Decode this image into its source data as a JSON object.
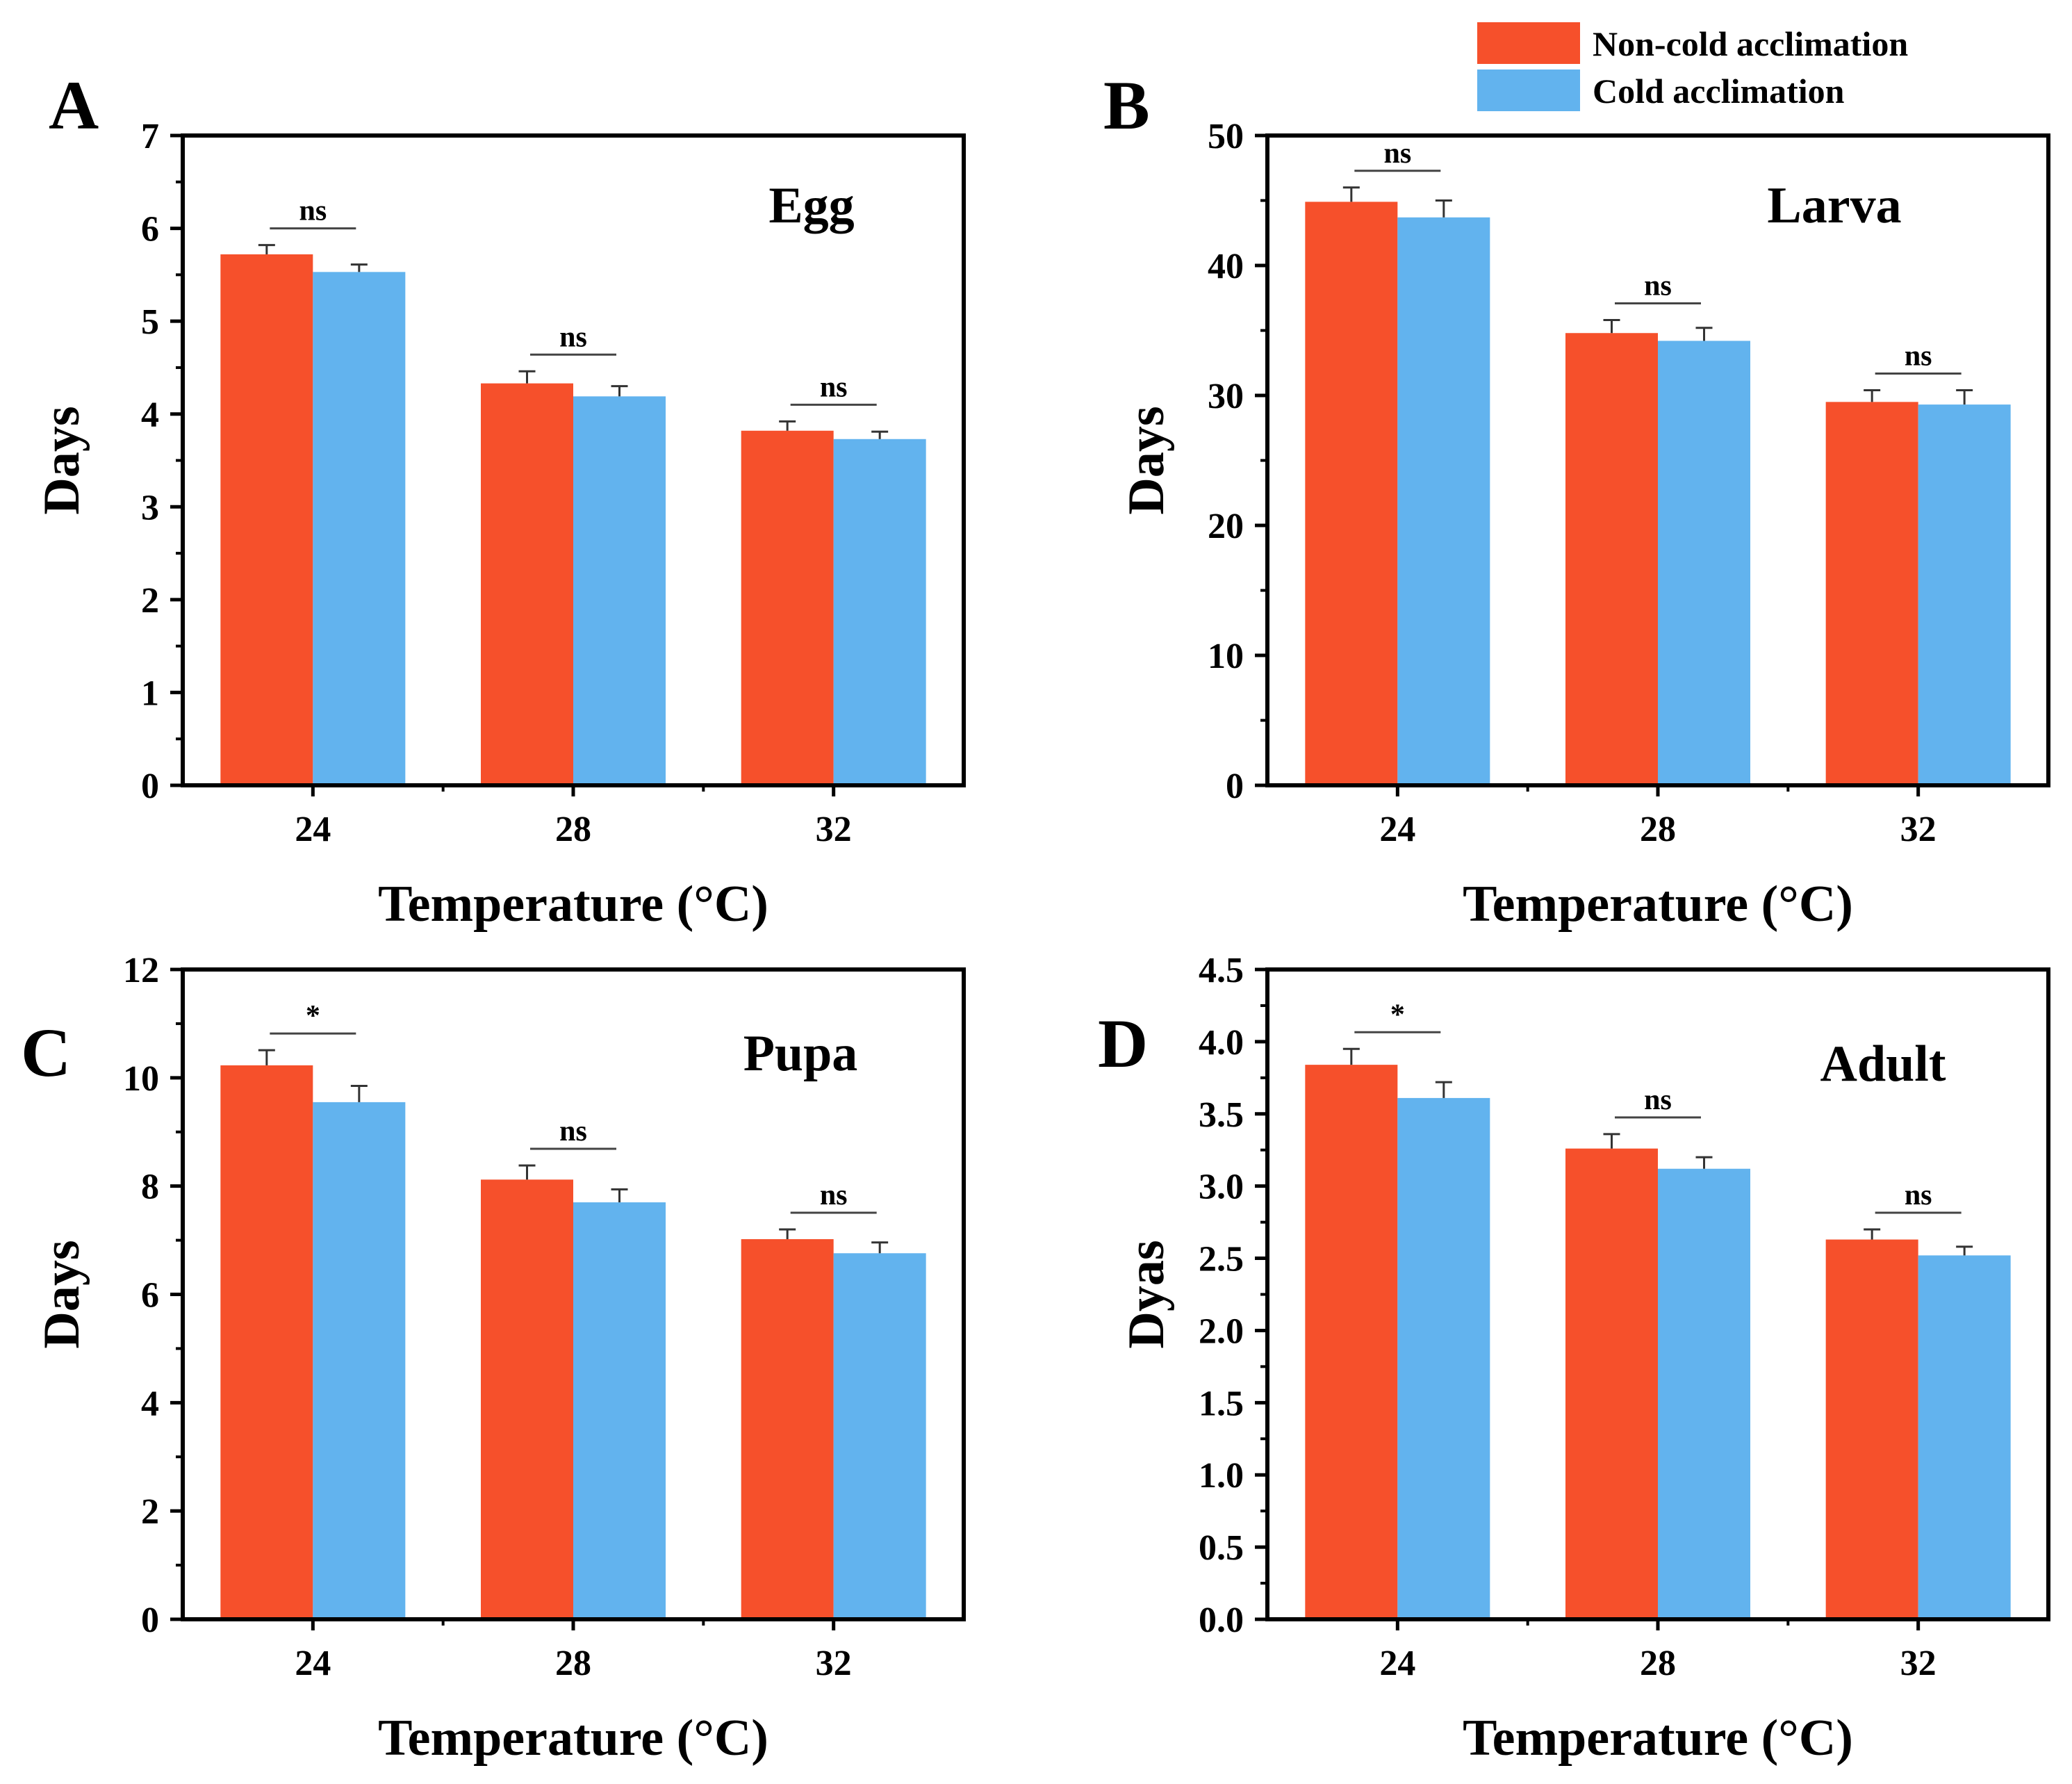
{
  "legend": {
    "entries": [
      {
        "label": "Non-cold acclimation",
        "color": "#F6502B"
      },
      {
        "label": "Cold acclimation",
        "color": "#62B3EE"
      }
    ]
  },
  "chart_data": [
    {
      "panel": "A",
      "type": "bar",
      "title": "Egg",
      "xlabel": "Temperature (°C)",
      "ylabel": "Days",
      "categories": [
        "24",
        "28",
        "32"
      ],
      "ylim": [
        0,
        7
      ],
      "yticks": [
        "0",
        "1",
        "2",
        "3",
        "4",
        "5",
        "6",
        "7"
      ],
      "yminor": 0.5,
      "series": [
        {
          "name": "Non-cold acclimation",
          "color": "#F6502B",
          "values": [
            5.72,
            4.33,
            3.82
          ],
          "errors": [
            0.1,
            0.13,
            0.1
          ]
        },
        {
          "name": "Cold acclimation",
          "color": "#62B3EE",
          "values": [
            5.53,
            4.19,
            3.73
          ],
          "errors": [
            0.08,
            0.11,
            0.08
          ]
        }
      ],
      "significance": [
        "ns",
        "ns",
        "ns"
      ]
    },
    {
      "panel": "B",
      "type": "bar",
      "title": "Larva",
      "xlabel": "Temperature (°C)",
      "ylabel": "Days",
      "categories": [
        "24",
        "28",
        "32"
      ],
      "ylim": [
        0,
        50
      ],
      "yticks": [
        "0",
        "10",
        "20",
        "30",
        "40",
        "50"
      ],
      "yminor": 5,
      "series": [
        {
          "name": "Non-cold acclimation",
          "color": "#F6502B",
          "values": [
            44.9,
            34.8,
            29.5
          ],
          "errors": [
            1.1,
            1.0,
            0.9
          ]
        },
        {
          "name": "Cold acclimation",
          "color": "#62B3EE",
          "values": [
            43.7,
            34.2,
            29.3
          ],
          "errors": [
            1.3,
            1.0,
            1.1
          ]
        }
      ],
      "significance": [
        "ns",
        "ns",
        "ns"
      ]
    },
    {
      "panel": "C",
      "type": "bar",
      "title": "Pupa",
      "xlabel": "Temperature (°C)",
      "ylabel": "Days",
      "categories": [
        "24",
        "28",
        "32"
      ],
      "ylim": [
        0,
        12
      ],
      "yticks": [
        "0",
        "2",
        "4",
        "6",
        "8",
        "10",
        "12"
      ],
      "yminor": 1,
      "series": [
        {
          "name": "Non-cold acclimation",
          "color": "#F6502B",
          "values": [
            10.23,
            8.12,
            7.02
          ],
          "errors": [
            0.28,
            0.26,
            0.18
          ]
        },
        {
          "name": "Cold acclimation",
          "color": "#62B3EE",
          "values": [
            9.55,
            7.7,
            6.76
          ],
          "errors": [
            0.3,
            0.24,
            0.2
          ]
        }
      ],
      "significance": [
        "*",
        "ns",
        "ns"
      ]
    },
    {
      "panel": "D",
      "type": "bar",
      "title": "Adult",
      "xlabel": "Temperature (°C)",
      "ylabel": "Dyas",
      "categories": [
        "24",
        "28",
        "32"
      ],
      "ylim": [
        0,
        4.5
      ],
      "yticks": [
        "0.0",
        "0.5",
        "1.0",
        "1.5",
        "2.0",
        "2.5",
        "3.0",
        "3.5",
        "4.0",
        "4.5"
      ],
      "yminor": 0.25,
      "series": [
        {
          "name": "Non-cold acclimation",
          "color": "#F6502B",
          "values": [
            3.84,
            3.26,
            2.63
          ],
          "errors": [
            0.11,
            0.1,
            0.07
          ]
        },
        {
          "name": "Cold acclimation",
          "color": "#62B3EE",
          "values": [
            3.61,
            3.12,
            2.52
          ],
          "errors": [
            0.11,
            0.08,
            0.06
          ]
        }
      ],
      "significance": [
        "*",
        "ns",
        "ns"
      ]
    }
  ]
}
